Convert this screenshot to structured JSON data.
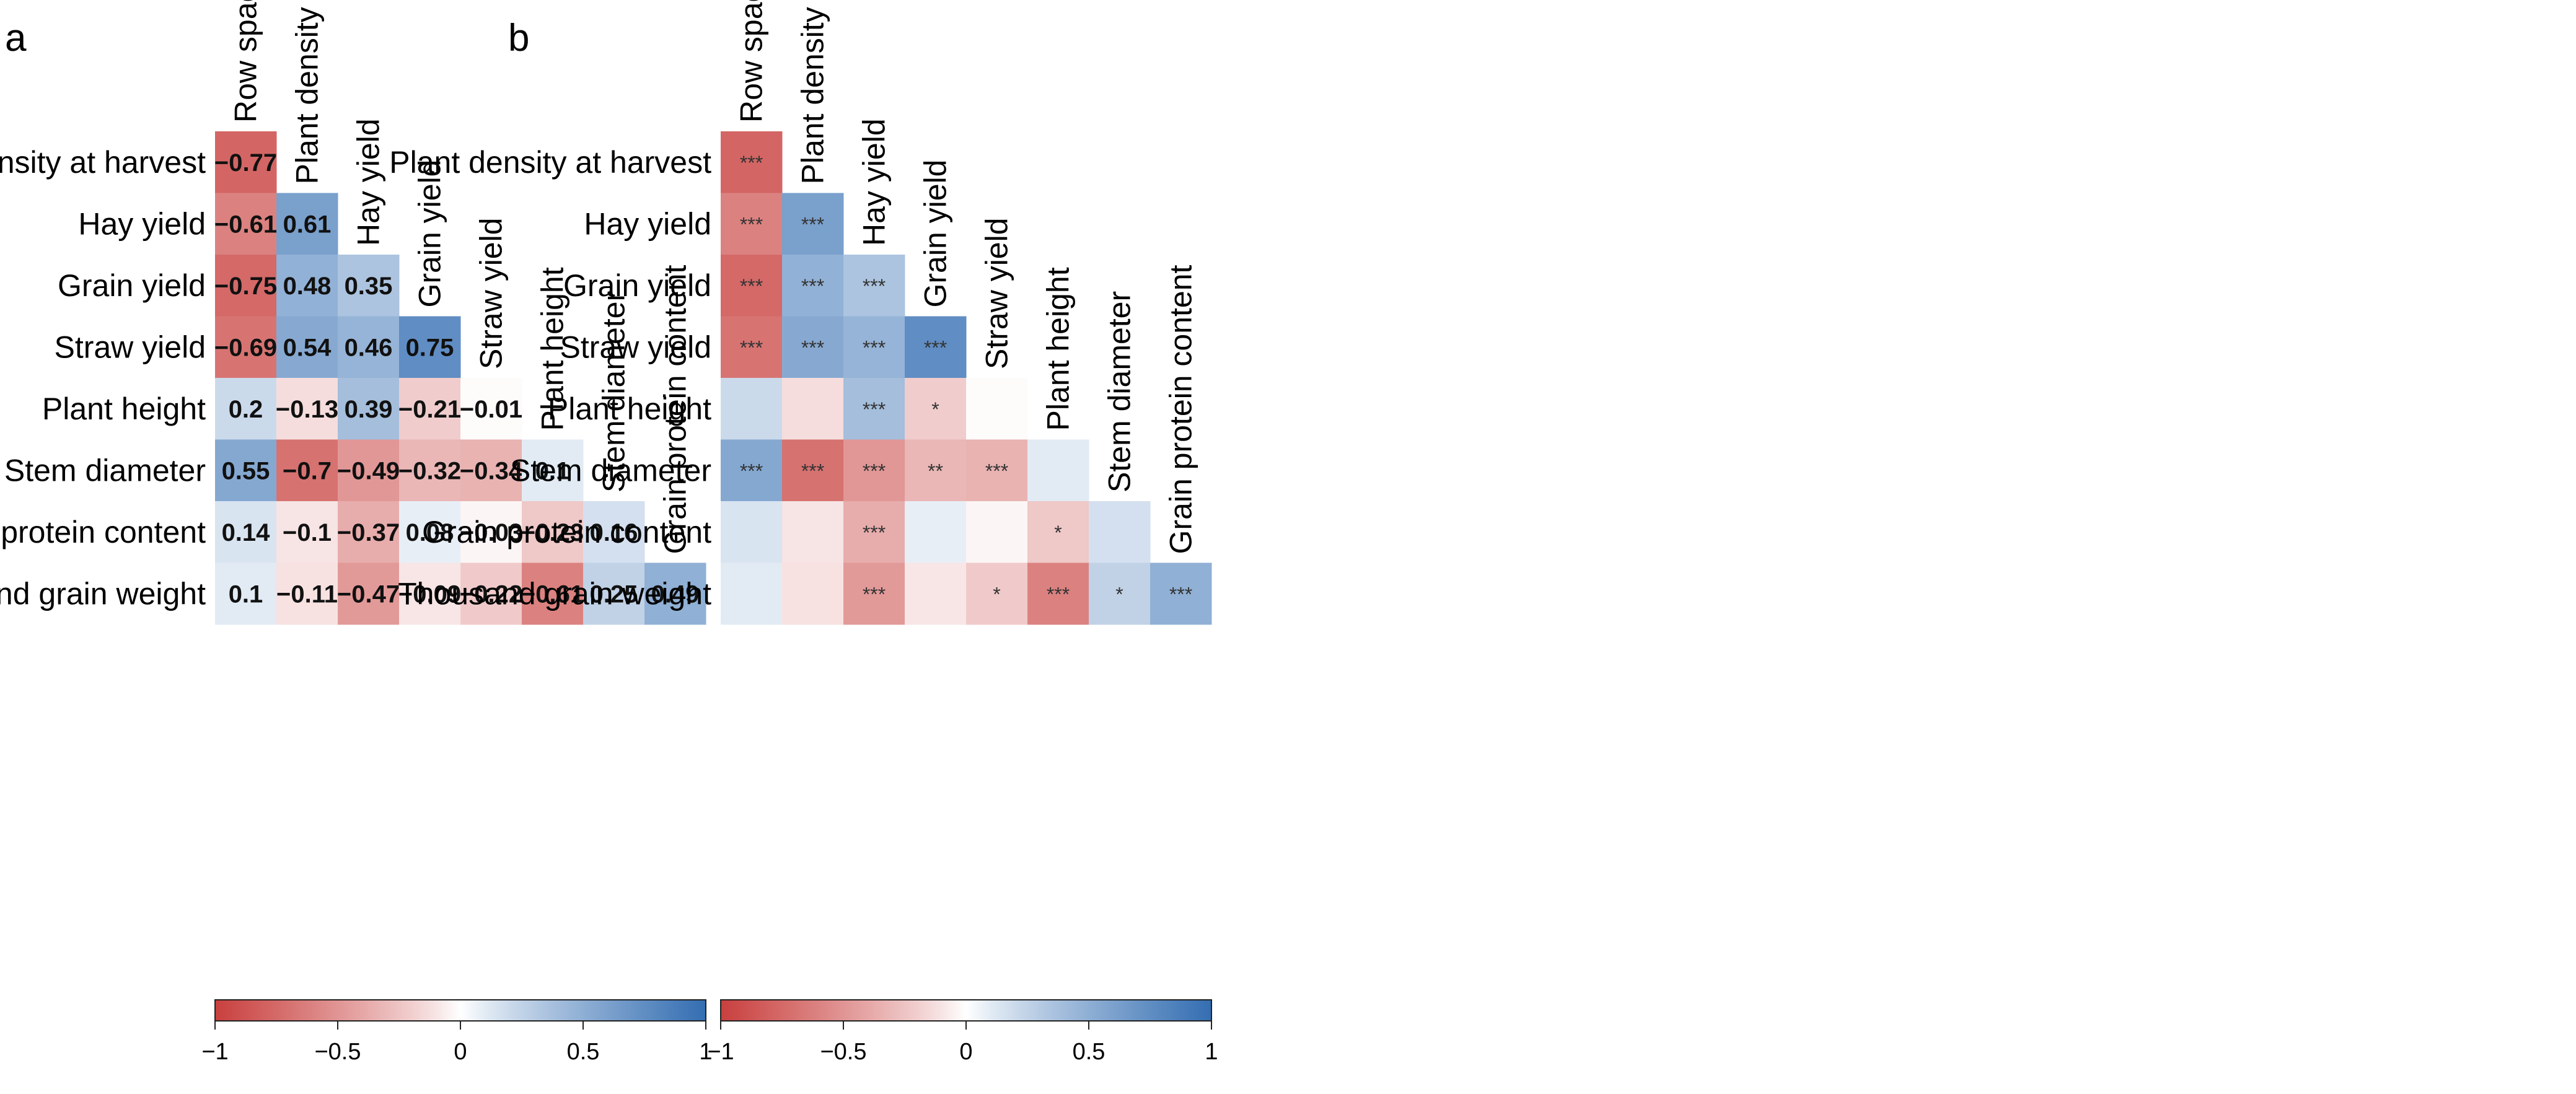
{
  "chart_data": [
    {
      "type": "heatmap",
      "panel_label": "a",
      "display": "values",
      "row_labels": [
        "Plant density at harvest",
        "Hay yield",
        "Grain yield",
        "Straw yield",
        "Plant height",
        "Stem diameter",
        "Grain protein content",
        "Thousand grain weight"
      ],
      "col_labels": [
        "Row spacing",
        "Plant density at harvest",
        "Hay yield",
        "Grain yield",
        "Straw yield",
        "Plant height",
        "Stem diameter",
        "Grain protein content"
      ],
      "values": [
        [
          -0.77
        ],
        [
          -0.61,
          0.61
        ],
        [
          -0.75,
          0.48,
          0.35
        ],
        [
          -0.69,
          0.54,
          0.46,
          0.75
        ],
        [
          0.2,
          -0.13,
          0.39,
          -0.21,
          -0.01
        ],
        [
          0.55,
          -0.7,
          -0.49,
          -0.32,
          -0.34,
          0.1
        ],
        [
          0.14,
          -0.1,
          -0.37,
          0.08,
          -0.03,
          -0.23,
          0.16
        ],
        [
          0.1,
          -0.11,
          -0.47,
          -0.09,
          -0.22,
          -0.61,
          0.25,
          0.49
        ]
      ],
      "value_labels": [
        [
          "−0.77"
        ],
        [
          "−0.61",
          "0.61"
        ],
        [
          "−0.75",
          "0.48",
          "0.35"
        ],
        [
          "−0.69",
          "0.54",
          "0.46",
          "0.75"
        ],
        [
          "0.2",
          "−0.13",
          "0.39",
          "−0.21",
          "−0.01"
        ],
        [
          "0.55",
          "−0.7",
          "−0.49",
          "−0.32",
          "−0.34",
          "0.1"
        ],
        [
          "0.14",
          "−0.1",
          "−0.37",
          "0.08",
          "−0.03",
          "−0.23",
          "0.16"
        ],
        [
          "0.1",
          "−0.11",
          "−0.47",
          "−0.09",
          "−0.22",
          "−0.61",
          "0.25",
          "0.49"
        ]
      ],
      "colorbar": {
        "range": [
          -1,
          1
        ],
        "ticks": [
          -1,
          -0.5,
          0,
          0.5,
          1
        ],
        "tick_labels": [
          "−1",
          "−0.5",
          "0",
          "0.5",
          "1"
        ]
      }
    },
    {
      "type": "heatmap",
      "panel_label": "b",
      "display": "significance",
      "row_labels": [
        "Plant density at harvest",
        "Hay yield",
        "Grain yield",
        "Straw yield",
        "Plant height",
        "Stem diameter",
        "Grain protein content",
        "Thousand grain weight"
      ],
      "col_labels": [
        "Row spacing",
        "Plant density at harvest",
        "Hay yield",
        "Grain yield",
        "Straw yield",
        "Plant height",
        "Stem diameter",
        "Grain protein content"
      ],
      "values": [
        [
          -0.77
        ],
        [
          -0.61,
          0.61
        ],
        [
          -0.75,
          0.48,
          0.35
        ],
        [
          -0.69,
          0.54,
          0.46,
          0.75
        ],
        [
          0.2,
          -0.13,
          0.39,
          -0.21,
          -0.01
        ],
        [
          0.55,
          -0.7,
          -0.49,
          -0.32,
          -0.34,
          0.1
        ],
        [
          0.14,
          -0.1,
          -0.37,
          0.08,
          -0.03,
          -0.23,
          0.16
        ],
        [
          0.1,
          -0.11,
          -0.47,
          -0.09,
          -0.22,
          -0.61,
          0.25,
          0.49
        ]
      ],
      "significance": [
        [
          "***"
        ],
        [
          "***",
          "***"
        ],
        [
          "***",
          "***",
          "***"
        ],
        [
          "***",
          "***",
          "***",
          "***"
        ],
        [
          "",
          "",
          "***",
          "*",
          ""
        ],
        [
          "***",
          "***",
          "***",
          "**",
          "***",
          ""
        ],
        [
          "",
          "",
          "***",
          "",
          "",
          "*",
          ""
        ],
        [
          "",
          "",
          "***",
          "",
          "*",
          "***",
          "*",
          "***"
        ]
      ],
      "colorbar": {
        "range": [
          -1,
          1
        ],
        "ticks": [
          -1,
          -0.5,
          0,
          0.5,
          1
        ],
        "tick_labels": [
          "−1",
          "−0.5",
          "0",
          "0.5",
          "1"
        ]
      }
    }
  ]
}
